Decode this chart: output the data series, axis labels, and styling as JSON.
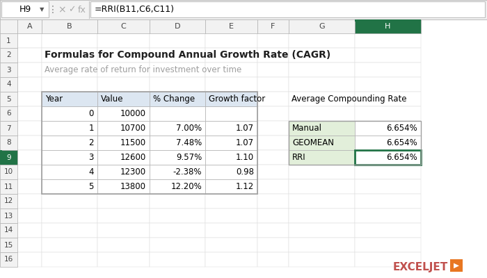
{
  "title": "Formulas for Compound Annual Growth Rate (CAGR)",
  "subtitle": "Average rate of return for investment over time",
  "formula_bar_cell": "H9",
  "formula_bar_formula": "=RRI(B11,C6,C11)",
  "col_labels": [
    "",
    "A",
    "B",
    "C",
    "D",
    "E",
    "F",
    "G",
    "H"
  ],
  "num_rows": 16,
  "main_table_headers": [
    "Year",
    "Value",
    "% Change",
    "Growth factor"
  ],
  "main_table_data": [
    [
      "0",
      "10000",
      "",
      ""
    ],
    [
      "1",
      "10700",
      "7.00%",
      "1.07"
    ],
    [
      "2",
      "11500",
      "7.48%",
      "1.07"
    ],
    [
      "3",
      "12600",
      "9.57%",
      "1.10"
    ],
    [
      "4",
      "12300",
      "-2.38%",
      "0.98"
    ],
    [
      "5",
      "13800",
      "12.20%",
      "1.12"
    ]
  ],
  "side_table_title": "Average Compounding Rate",
  "side_table_data": [
    [
      "Manual",
      "6.654%"
    ],
    [
      "GEOMEAN",
      "6.654%"
    ],
    [
      "RRI",
      "6.654%"
    ]
  ],
  "bg_color": "#ffffff",
  "header_row_bg": "#dce6f1",
  "toolbar_bg": "#f2f2f2",
  "col_header_bg": "#f2f2f2",
  "col_header_fg": "#444444",
  "selected_col_header_bg": "#217346",
  "selected_col_header_fg": "#ffffff",
  "selected_row_header_bg": "#217346",
  "selected_row_header_fg": "#ffffff",
  "side_header_bg": "#e2efda",
  "selected_cell_border": "#217346",
  "title_color": "#1f1f1f",
  "subtitle_color": "#9e9e9e",
  "grid_color": "#d0d0d0",
  "border_color": "#b0b0b0",
  "exceljet_text_color": "#c0504d",
  "exceljet_icon_color": "#e87722"
}
